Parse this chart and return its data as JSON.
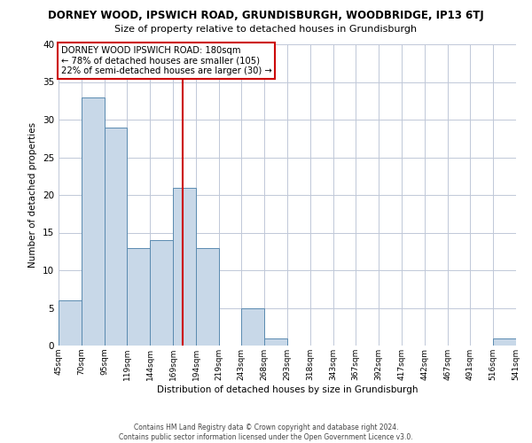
{
  "title": "DORNEY WOOD, IPSWICH ROAD, GRUNDISBURGH, WOODBRIDGE, IP13 6TJ",
  "subtitle": "Size of property relative to detached houses in Grundisburgh",
  "xlabel": "Distribution of detached houses by size in Grundisburgh",
  "ylabel": "Number of detached properties",
  "bar_color": "#c8d8e8",
  "bar_edge_color": "#5a8ab0",
  "background_color": "#ffffff",
  "grid_color": "#c0c8d8",
  "vline_x": 180,
  "vline_color": "#cc0000",
  "annotation_line1": "DORNEY WOOD IPSWICH ROAD: 180sqm",
  "annotation_line2": "← 78% of detached houses are smaller (105)",
  "annotation_line3": "22% of semi-detached houses are larger (30) →",
  "annotation_box_color": "#cc0000",
  "bin_edges": [
    45,
    70,
    95,
    119,
    144,
    169,
    194,
    219,
    243,
    268,
    293,
    318,
    343,
    367,
    392,
    417,
    442,
    467,
    491,
    516,
    541
  ],
  "bin_heights": [
    6,
    33,
    29,
    13,
    14,
    21,
    13,
    0,
    5,
    1,
    0,
    0,
    0,
    0,
    0,
    0,
    0,
    0,
    0,
    1
  ],
  "tick_labels": [
    "45sqm",
    "70sqm",
    "95sqm",
    "119sqm",
    "144sqm",
    "169sqm",
    "194sqm",
    "219sqm",
    "243sqm",
    "268sqm",
    "293sqm",
    "318sqm",
    "343sqm",
    "367sqm",
    "392sqm",
    "417sqm",
    "442sqm",
    "467sqm",
    "491sqm",
    "516sqm",
    "541sqm"
  ],
  "ylim": [
    0,
    40
  ],
  "yticks": [
    0,
    5,
    10,
    15,
    20,
    25,
    30,
    35,
    40
  ],
  "footer_line1": "Contains HM Land Registry data © Crown copyright and database right 2024.",
  "footer_line2": "Contains public sector information licensed under the Open Government Licence v3.0."
}
